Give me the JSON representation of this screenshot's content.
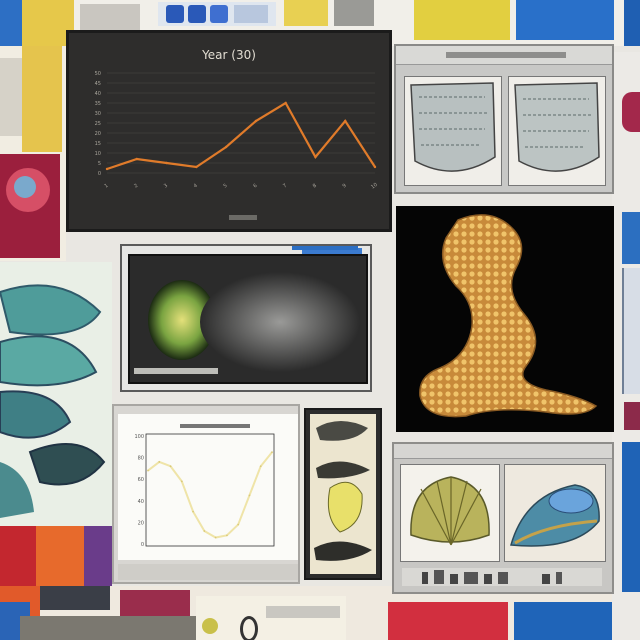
{
  "collage": {
    "chart_title": "Year (30)",
    "colors": {
      "background": "#e9e7e2",
      "dark_panel": "#2b2a2a",
      "line_orange": "#e07b2a",
      "line_cream": "#efe4a8",
      "accent_blue": "#1c62b0",
      "accent_red": "#c8263a",
      "accent_yellow": "#e2c84a",
      "teal": "#4a8e8b"
    }
  },
  "chart_data": [
    {
      "type": "line",
      "title": "Year (30)",
      "xlabel": "",
      "ylabel": "",
      "x": [
        1,
        2,
        3,
        4,
        5,
        6,
        7,
        8,
        9,
        10
      ],
      "series": [
        {
          "values": [
            2,
            7,
            5,
            3,
            13,
            26,
            35,
            8,
            26,
            3
          ]
        }
      ],
      "ylim": [
        0,
        50
      ],
      "grid": true
    },
    {
      "type": "line",
      "title": "",
      "xlabel": "",
      "ylabel": "",
      "x": [
        1,
        2,
        3,
        4,
        5,
        6,
        7,
        8,
        9,
        10,
        11,
        12
      ],
      "series": [
        {
          "values": [
            68,
            76,
            72,
            58,
            30,
            12,
            6,
            8,
            18,
            45,
            72,
            85
          ]
        }
      ],
      "ylim": [
        0,
        100
      ],
      "grid": false
    }
  ]
}
